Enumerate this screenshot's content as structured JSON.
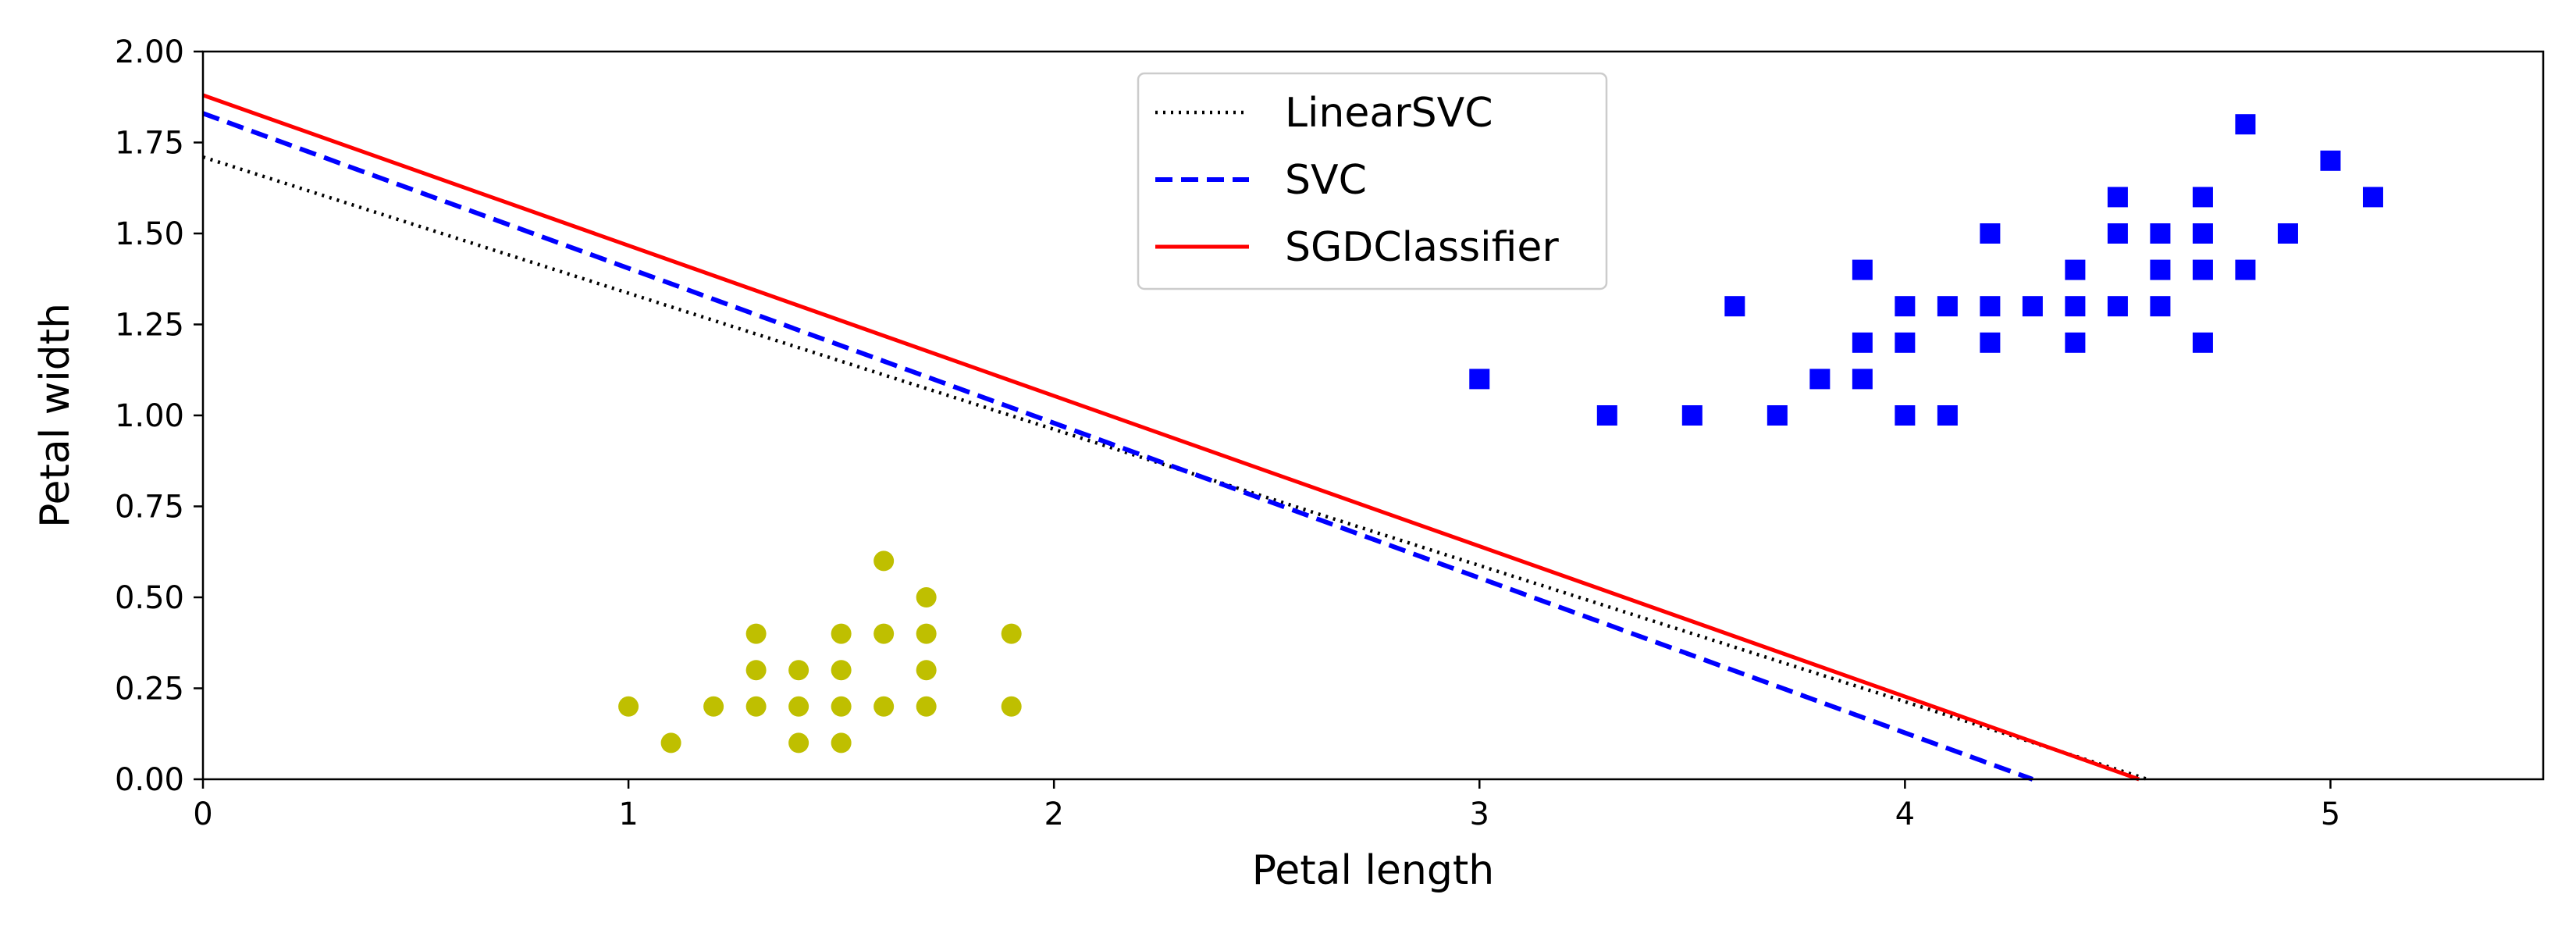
{
  "chart_data": {
    "type": "scatter",
    "xlabel": "Petal length",
    "ylabel": "Petal width",
    "xlim": [
      0,
      5.5
    ],
    "ylim": [
      0,
      2.0
    ],
    "xticks": [
      0,
      1,
      2,
      3,
      4,
      5
    ],
    "xtick_labels": [
      "0",
      "1",
      "2",
      "3",
      "4",
      "5"
    ],
    "yticks": [
      0,
      0.25,
      0.5,
      0.75,
      1.0,
      1.25,
      1.5,
      1.75,
      2.0
    ],
    "ytick_labels": [
      "0.00",
      "0.25",
      "0.50",
      "0.75",
      "1.00",
      "1.25",
      "1.50",
      "1.75",
      "2.00"
    ],
    "grid": false,
    "legend_position": "top-center",
    "lines": [
      {
        "name": "LinearSVC",
        "style": "dotted",
        "color": "#000000",
        "x": [
          0,
          4.57
        ],
        "y": [
          1.71,
          0
        ]
      },
      {
        "name": "SVC",
        "style": "dashed",
        "color": "#0000ff",
        "x": [
          0,
          4.3
        ],
        "y": [
          1.83,
          0
        ]
      },
      {
        "name": "SGDClassifier",
        "style": "solid",
        "color": "#ff0000",
        "x": [
          0,
          4.55
        ],
        "y": [
          1.88,
          0
        ]
      }
    ],
    "scatter": [
      {
        "marker": "circle",
        "color": "#bfbf00",
        "x": [
          1.0,
          1.1,
          1.2,
          1.3,
          1.3,
          1.3,
          1.4,
          1.4,
          1.4,
          1.5,
          1.5,
          1.5,
          1.5,
          1.6,
          1.6,
          1.6,
          1.7,
          1.7,
          1.7,
          1.7,
          1.9,
          1.9
        ],
        "y": [
          0.2,
          0.1,
          0.2,
          0.2,
          0.3,
          0.4,
          0.1,
          0.2,
          0.3,
          0.1,
          0.2,
          0.3,
          0.4,
          0.2,
          0.4,
          0.6,
          0.2,
          0.3,
          0.4,
          0.5,
          0.2,
          0.4
        ]
      },
      {
        "marker": "square",
        "color": "#0000ff",
        "x": [
          3.0,
          3.3,
          3.5,
          3.6,
          3.7,
          3.8,
          3.9,
          3.9,
          3.9,
          4.0,
          4.0,
          4.0,
          4.1,
          4.1,
          4.2,
          4.2,
          4.2,
          4.3,
          4.4,
          4.4,
          4.4,
          4.5,
          4.5,
          4.5,
          4.6,
          4.6,
          4.6,
          4.7,
          4.7,
          4.7,
          4.7,
          4.8,
          4.8,
          4.9,
          5.0,
          5.1
        ],
        "y": [
          1.1,
          1.0,
          1.0,
          1.3,
          1.0,
          1.1,
          1.1,
          1.2,
          1.4,
          1.0,
          1.2,
          1.3,
          1.0,
          1.3,
          1.2,
          1.3,
          1.5,
          1.3,
          1.2,
          1.3,
          1.4,
          1.3,
          1.5,
          1.6,
          1.3,
          1.4,
          1.5,
          1.2,
          1.4,
          1.5,
          1.6,
          1.4,
          1.8,
          1.5,
          1.7,
          1.6
        ]
      }
    ]
  }
}
